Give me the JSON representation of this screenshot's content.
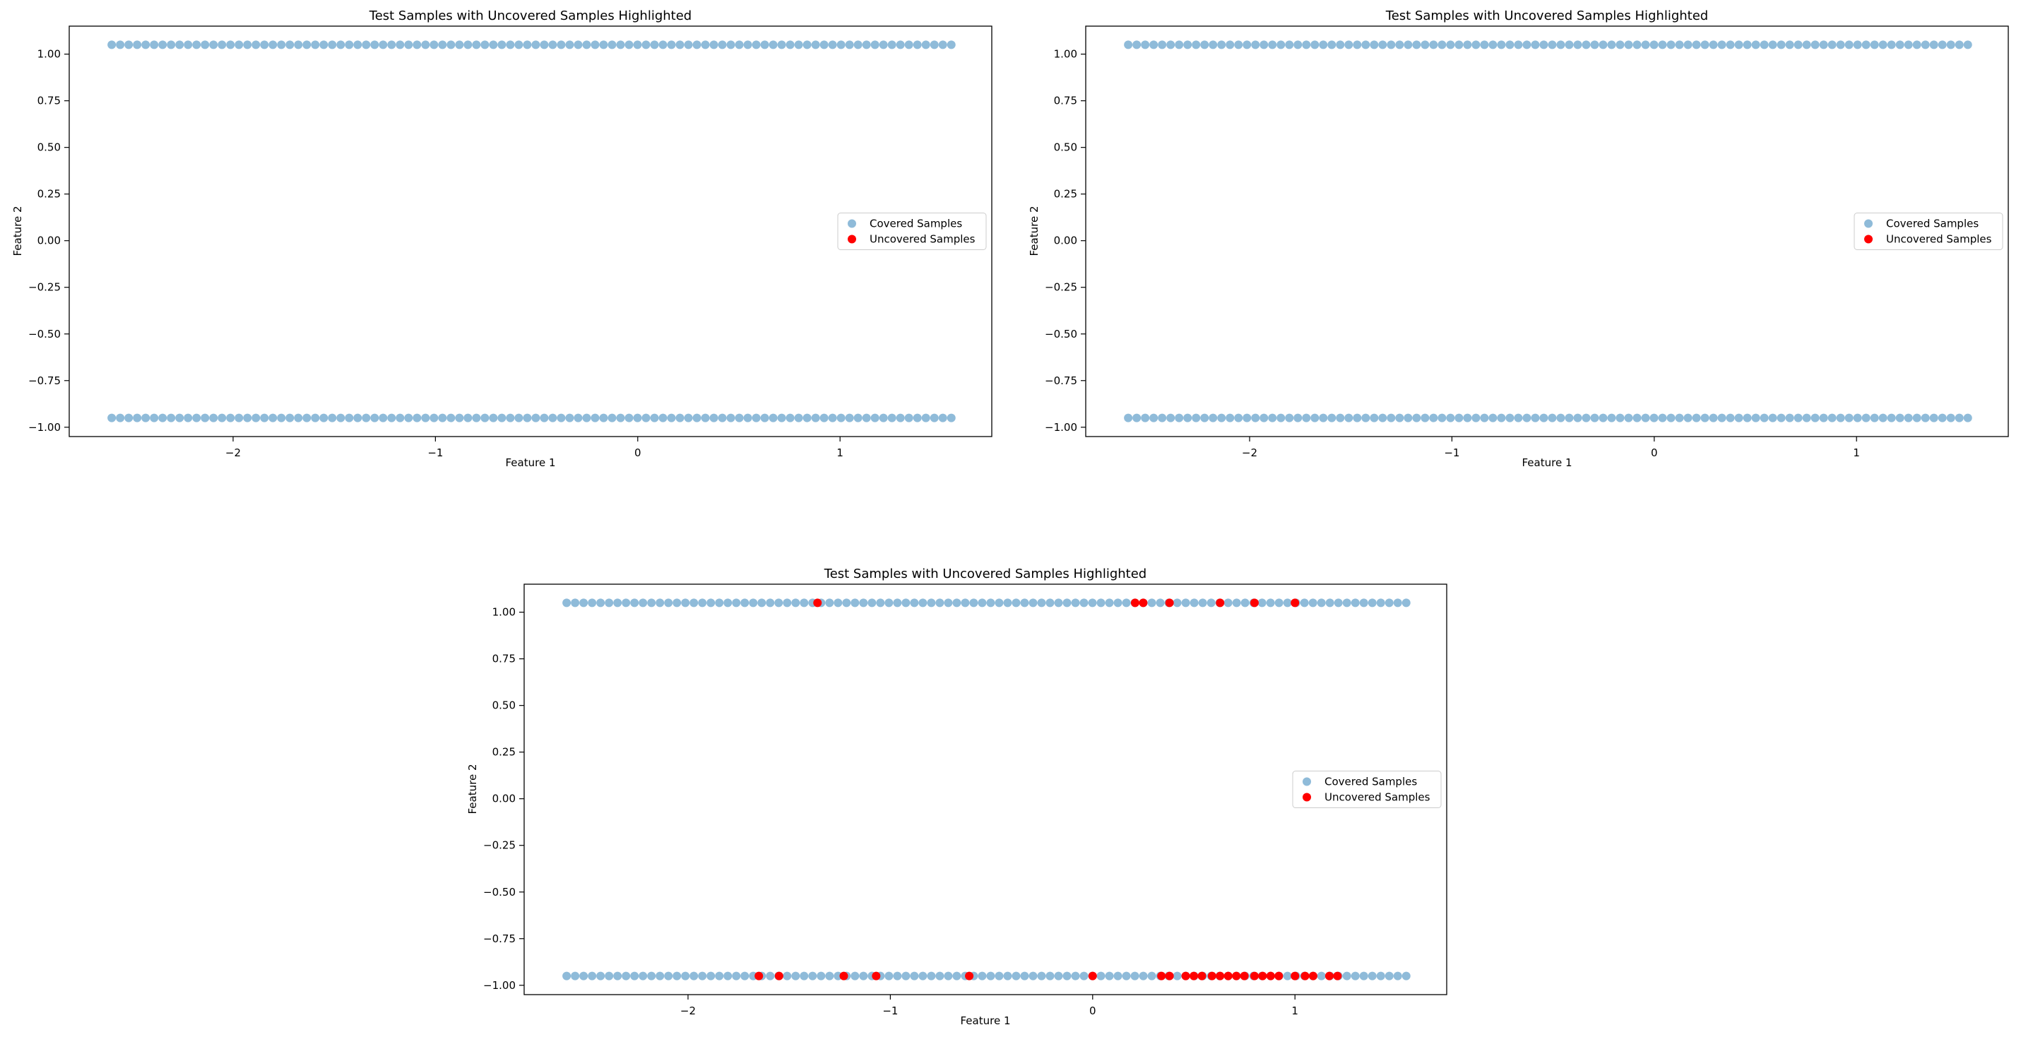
{
  "colors": {
    "covered": "#1f77b4",
    "uncovered": "#ff0000",
    "axis": "#000000",
    "legend_border": "#cccccc",
    "background": "#ffffff"
  },
  "chart_data": [
    {
      "type": "scatter",
      "title": "Test Samples with Uncovered Samples Highlighted",
      "xlabel": "Feature 1",
      "ylabel": "Feature 2",
      "xlim": [
        -2.81,
        1.75
      ],
      "ylim": [
        -1.05,
        1.15
      ],
      "xticks": [
        -2,
        -1,
        0,
        1
      ],
      "xtick_labels": [
        "−2",
        "−1",
        "0",
        "1"
      ],
      "yticks": [
        1.0,
        0.75,
        0.5,
        0.25,
        0.0,
        -0.25,
        -0.5,
        -0.75,
        -1.0
      ],
      "ytick_labels": [
        "1.00",
        "0.75",
        "0.50",
        "0.25",
        "0.00",
        "−0.25",
        "−0.50",
        "−0.75",
        "−1.00"
      ],
      "grid": false,
      "legend": {
        "location": "center-right",
        "entries": [
          "Covered Samples",
          "Uncovered Samples"
        ]
      },
      "series": [
        {
          "name": "Covered Samples",
          "x_range": [
            -2.6,
            1.55
          ],
          "count": 100,
          "y_levels": [
            1.05,
            -0.95
          ],
          "alpha": 0.5
        },
        {
          "name": "Uncovered Samples",
          "points": []
        }
      ]
    },
    {
      "type": "scatter",
      "title": "Test Samples with Uncovered Samples Highlighted",
      "xlabel": "Feature 1",
      "ylabel": "Feature 2",
      "xlim": [
        -2.81,
        1.75
      ],
      "ylim": [
        -1.05,
        1.15
      ],
      "xticks": [
        -2,
        -1,
        0,
        1
      ],
      "xtick_labels": [
        "−2",
        "−1",
        "0",
        "1"
      ],
      "yticks": [
        1.0,
        0.75,
        0.5,
        0.25,
        0.0,
        -0.25,
        -0.5,
        -0.75,
        -1.0
      ],
      "ytick_labels": [
        "1.00",
        "0.75",
        "0.50",
        "0.25",
        "0.00",
        "−0.25",
        "−0.50",
        "−0.75",
        "−1.00"
      ],
      "grid": false,
      "legend": {
        "location": "center-right",
        "entries": [
          "Covered Samples",
          "Uncovered Samples"
        ]
      },
      "series": [
        {
          "name": "Covered Samples",
          "x_range": [
            -2.6,
            1.55
          ],
          "count": 100,
          "y_levels": [
            1.05,
            -0.95
          ],
          "alpha": 0.5
        },
        {
          "name": "Uncovered Samples",
          "points": []
        }
      ]
    },
    {
      "type": "scatter",
      "title": "Test Samples with Uncovered Samples Highlighted",
      "xlabel": "Feature 1",
      "ylabel": "Feature 2",
      "xlim": [
        -2.81,
        1.75
      ],
      "ylim": [
        -1.05,
        1.15
      ],
      "xticks": [
        -2,
        -1,
        0,
        1
      ],
      "xtick_labels": [
        "−2",
        "−1",
        "0",
        "1"
      ],
      "yticks": [
        1.0,
        0.75,
        0.5,
        0.25,
        0.0,
        -0.25,
        -0.5,
        -0.75,
        -1.0
      ],
      "ytick_labels": [
        "1.00",
        "0.75",
        "0.50",
        "0.25",
        "0.00",
        "−0.25",
        "−0.50",
        "−0.75",
        "−1.00"
      ],
      "grid": false,
      "legend": {
        "location": "center-right",
        "entries": [
          "Covered Samples",
          "Uncovered Samples"
        ]
      },
      "series": [
        {
          "name": "Covered Samples",
          "x_range": [
            -2.6,
            1.55
          ],
          "count": 100,
          "y_levels": [
            1.05,
            -0.95
          ],
          "alpha": 0.5
        },
        {
          "name": "Uncovered Samples",
          "points": [
            [
              -1.36,
              1.05
            ],
            [
              0.21,
              1.05
            ],
            [
              0.25,
              1.05
            ],
            [
              0.38,
              1.05
            ],
            [
              0.63,
              1.05
            ],
            [
              0.8,
              1.05
            ],
            [
              1.0,
              1.05
            ],
            [
              -1.65,
              -0.95
            ],
            [
              -1.55,
              -0.95
            ],
            [
              -1.23,
              -0.95
            ],
            [
              -1.07,
              -0.95
            ],
            [
              -0.61,
              -0.95
            ],
            [
              0.0,
              -0.95
            ],
            [
              0.34,
              -0.95
            ],
            [
              0.38,
              -0.95
            ],
            [
              0.46,
              -0.95
            ],
            [
              0.5,
              -0.95
            ],
            [
              0.54,
              -0.95
            ],
            [
              0.59,
              -0.95
            ],
            [
              0.63,
              -0.95
            ],
            [
              0.67,
              -0.95
            ],
            [
              0.71,
              -0.95
            ],
            [
              0.75,
              -0.95
            ],
            [
              0.8,
              -0.95
            ],
            [
              0.84,
              -0.95
            ],
            [
              0.88,
              -0.95
            ],
            [
              0.92,
              -0.95
            ],
            [
              1.0,
              -0.95
            ],
            [
              1.05,
              -0.95
            ],
            [
              1.09,
              -0.95
            ],
            [
              1.17,
              -0.95
            ],
            [
              1.21,
              -0.95
            ]
          ]
        }
      ]
    }
  ]
}
